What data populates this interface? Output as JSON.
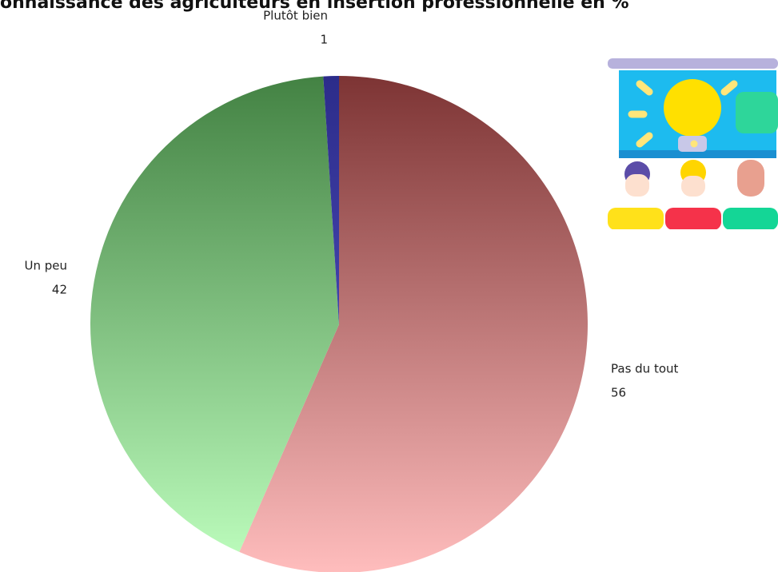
{
  "chart_data": {
    "type": "pie",
    "title": "onnaissance des agriculteurs en insertion professionnelle en %",
    "categories": [
      "Pas du tout",
      "Un peu",
      "Plutôt bien"
    ],
    "values": [
      56,
      42,
      1
    ],
    "colors": [
      [
        "#7d3434",
        "#ffbdbd"
      ],
      [
        "#438243",
        "#bfffbf"
      ],
      [
        "#2c2c8a",
        "#5a5ad0"
      ]
    ]
  }
}
